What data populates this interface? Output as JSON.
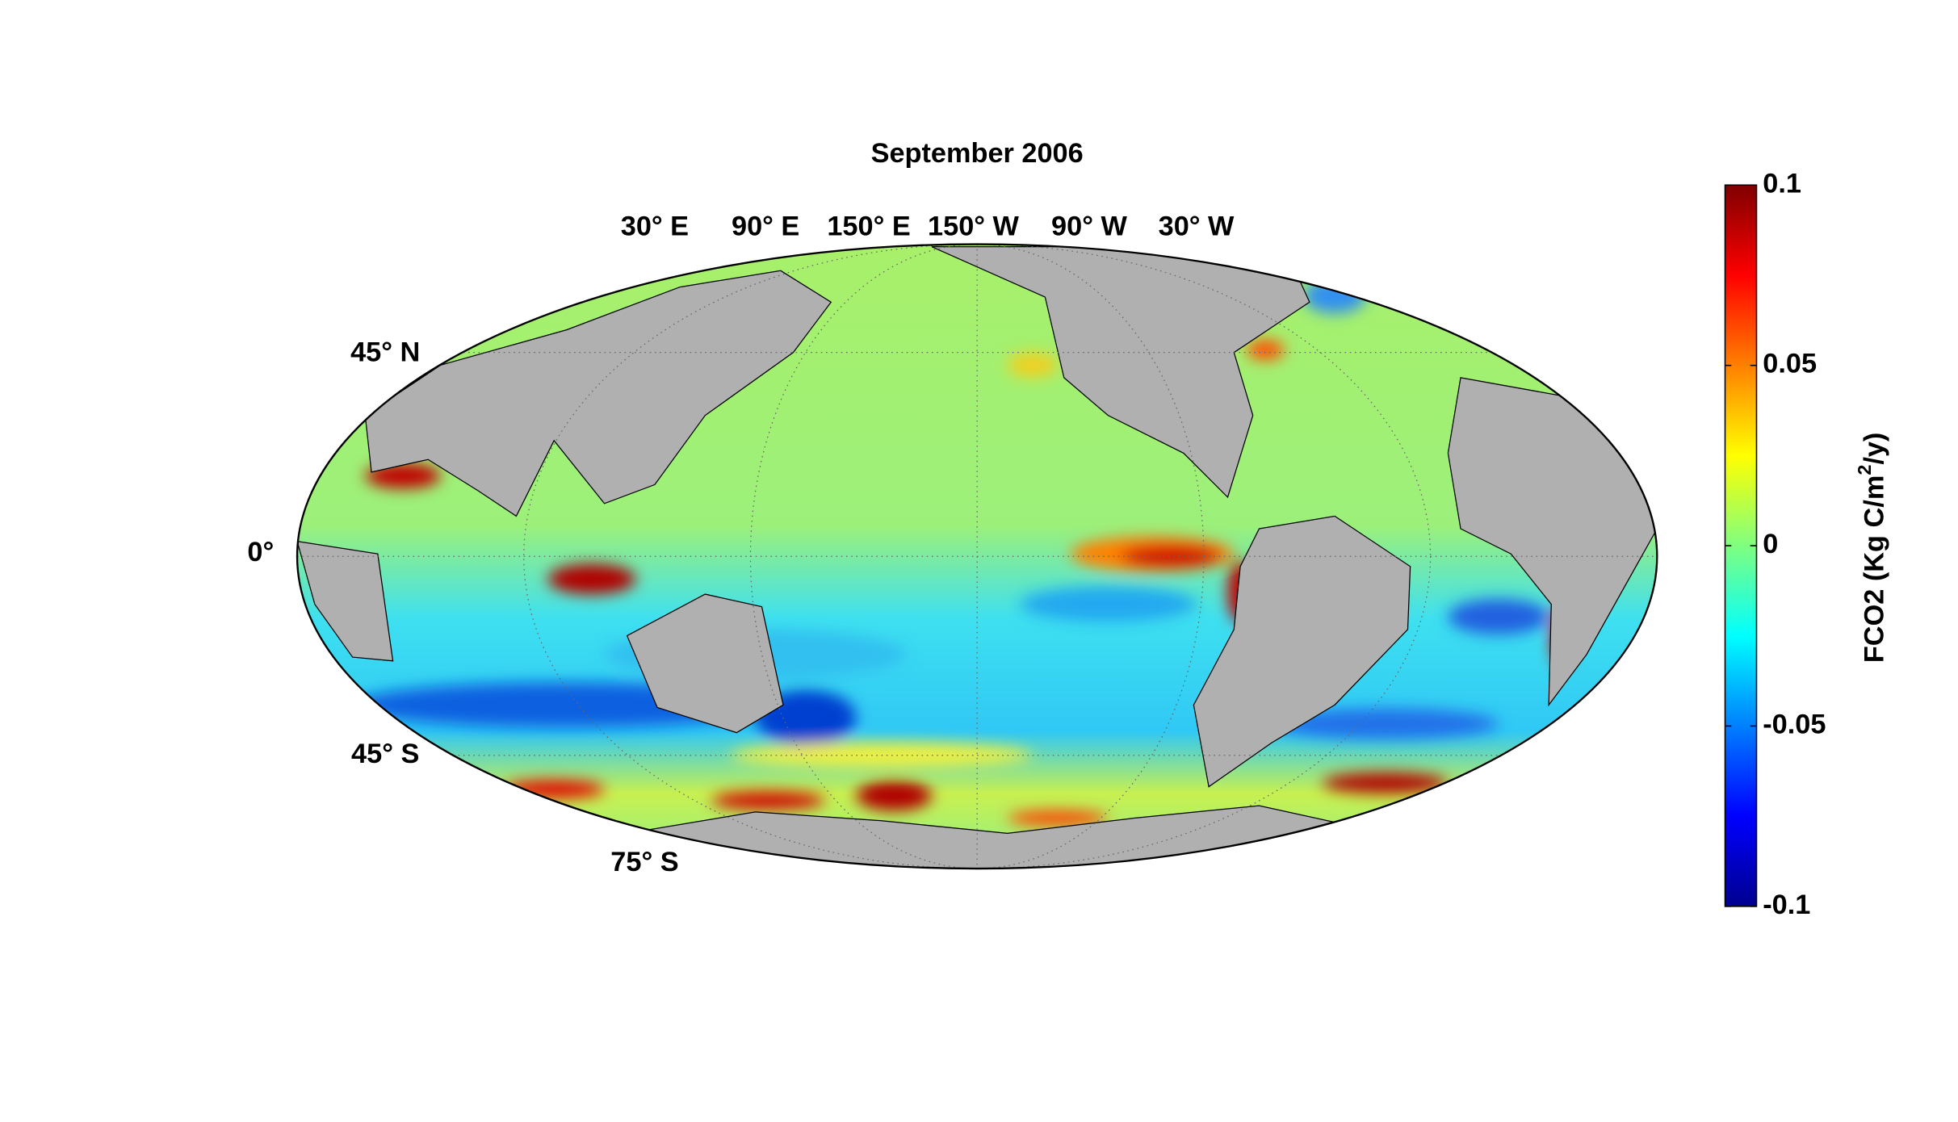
{
  "chart_data": {
    "type": "map",
    "title": "September 2006",
    "longitude_labels": [
      "30° E",
      "90° E",
      "150° E",
      "150° W",
      "90° W",
      "30° W"
    ],
    "latitude_labels": [
      "45° N",
      "0°",
      "45° S",
      "75° S"
    ],
    "colorbar": {
      "label": "FCO2 (Kg C/m",
      "label_superscript": "2",
      "label_end": "/y)",
      "lim": [
        -0.1,
        0.1
      ],
      "ticks": [
        0.1,
        0.05,
        0,
        -0.05,
        -0.1
      ],
      "colormap": "jet"
    }
  }
}
